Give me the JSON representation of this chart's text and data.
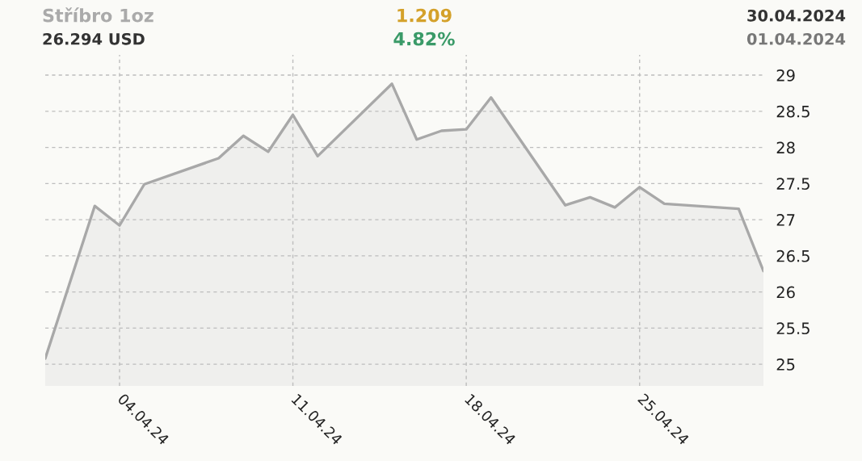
{
  "chart_data": {
    "type": "area",
    "title": "Stříbro 1oz",
    "subtitle": "26.294 USD",
    "annotations": [
      "1.209",
      "4.82%",
      "30.04.2024",
      "01.04.2024"
    ],
    "x": [
      "2024-04-01",
      "2024-04-03",
      "2024-04-04",
      "2024-04-05",
      "2024-04-08",
      "2024-04-09",
      "2024-04-10",
      "2024-04-11",
      "2024-04-12",
      "2024-04-15",
      "2024-04-16",
      "2024-04-17",
      "2024-04-18",
      "2024-04-19",
      "2024-04-22",
      "2024-04-23",
      "2024-04-24",
      "2024-04-25",
      "2024-04-26",
      "2024-04-29",
      "2024-04-30"
    ],
    "series": [
      {
        "color": "#a8a8a8",
        "values": [
          25.08,
          27.19,
          26.92,
          27.49,
          27.85,
          28.16,
          27.94,
          28.45,
          27.88,
          28.88,
          28.11,
          28.23,
          28.25,
          28.69,
          27.2,
          27.31,
          27.17,
          27.45,
          27.22,
          27.15,
          26.29
        ]
      }
    ],
    "xlim": [
      "2024-04-01",
      "2024-04-30"
    ],
    "xticks": [
      {
        "value": "2024-04-04",
        "label": "04.04.24"
      },
      {
        "value": "2024-04-11",
        "label": "11.04.24"
      },
      {
        "value": "2024-04-18",
        "label": "18.04.24"
      },
      {
        "value": "2024-04-25",
        "label": "25.04.24"
      }
    ],
    "ylim": [
      24.7,
      29.28
    ],
    "yticks": [
      25,
      25.5,
      26,
      26.5,
      27,
      27.5,
      28,
      28.5,
      29
    ],
    "grid": true,
    "line_style": "solid",
    "marker": "none"
  }
}
